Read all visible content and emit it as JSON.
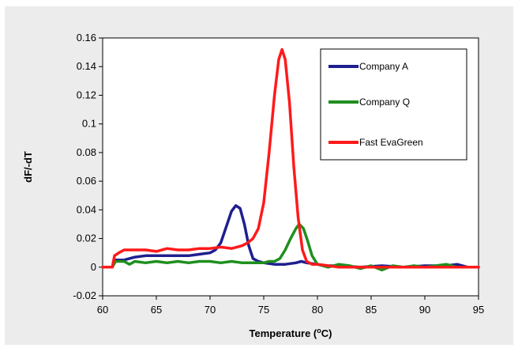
{
  "chart_data": {
    "type": "line",
    "xlabel": "Temperature (oC)",
    "xlabel_main": "Temperature (",
    "xlabel_sup": "o",
    "xlabel_end": "C)",
    "ylabel": "dF/-dT",
    "xlim": [
      60,
      95
    ],
    "ylim": [
      -0.02,
      0.16
    ],
    "x_ticks": [
      60,
      65,
      70,
      75,
      80,
      85,
      90,
      95
    ],
    "y_ticks": [
      -0.02,
      0,
      0.02,
      0.04,
      0.06,
      0.08,
      0.1,
      0.12,
      0.14,
      0.16
    ],
    "x_tick_labels": [
      "60",
      "65",
      "70",
      "75",
      "80",
      "85",
      "90",
      "95"
    ],
    "y_tick_labels": [
      "-0.02",
      "0",
      "0.02",
      "0.04",
      "0.06",
      "0.08",
      "0.1",
      "0.12",
      "0.14",
      "0.16"
    ],
    "grid": false,
    "legend_position": "top-right",
    "series": [
      {
        "name": "Company A",
        "color": "#1f1f8f",
        "points": [
          [
            60,
            0
          ],
          [
            60.9,
            0
          ],
          [
            61.2,
            0.005
          ],
          [
            62,
            0.005
          ],
          [
            63,
            0.007
          ],
          [
            64,
            0.008
          ],
          [
            65,
            0.008
          ],
          [
            66,
            0.008
          ],
          [
            67,
            0.008
          ],
          [
            68,
            0.008
          ],
          [
            69,
            0.009
          ],
          [
            70,
            0.01
          ],
          [
            70.5,
            0.012
          ],
          [
            71,
            0.017
          ],
          [
            71.5,
            0.028
          ],
          [
            72,
            0.039
          ],
          [
            72.4,
            0.043
          ],
          [
            72.8,
            0.041
          ],
          [
            73.2,
            0.03
          ],
          [
            73.6,
            0.015
          ],
          [
            74,
            0.006
          ],
          [
            74.5,
            0.004
          ],
          [
            75,
            0.003
          ],
          [
            76,
            0.002
          ],
          [
            77,
            0.002
          ],
          [
            78,
            0.003
          ],
          [
            78.5,
            0.004
          ],
          [
            79,
            0.003
          ],
          [
            80,
            0.002
          ],
          [
            81,
            0.001
          ],
          [
            82,
            0.001
          ],
          [
            84,
            0
          ],
          [
            86,
            0.001
          ],
          [
            88,
            0
          ],
          [
            90,
            0.001
          ],
          [
            92,
            0.001
          ],
          [
            93,
            0.002
          ],
          [
            94,
            0
          ],
          [
            95,
            0
          ]
        ]
      },
      {
        "name": "Company Q",
        "color": "#1e8f1e",
        "points": [
          [
            60,
            0
          ],
          [
            60.9,
            0
          ],
          [
            61.2,
            0.004
          ],
          [
            62,
            0.004
          ],
          [
            62.5,
            0.002
          ],
          [
            63,
            0.004
          ],
          [
            64,
            0.003
          ],
          [
            65,
            0.004
          ],
          [
            66,
            0.003
          ],
          [
            67,
            0.004
          ],
          [
            68,
            0.003
          ],
          [
            69,
            0.004
          ],
          [
            70,
            0.004
          ],
          [
            71,
            0.003
          ],
          [
            72,
            0.004
          ],
          [
            73,
            0.003
          ],
          [
            74,
            0.003
          ],
          [
            75,
            0.003
          ],
          [
            75.5,
            0.004
          ],
          [
            76,
            0.004
          ],
          [
            76.5,
            0.006
          ],
          [
            77,
            0.012
          ],
          [
            77.5,
            0.02
          ],
          [
            78,
            0.027
          ],
          [
            78.3,
            0.03
          ],
          [
            78.7,
            0.027
          ],
          [
            79.1,
            0.018
          ],
          [
            79.5,
            0.008
          ],
          [
            80,
            0.002
          ],
          [
            81,
            0
          ],
          [
            82,
            0.002
          ],
          [
            83,
            0.001
          ],
          [
            84,
            -0.001
          ],
          [
            85,
            0.001
          ],
          [
            86,
            -0.002
          ],
          [
            87,
            0.001
          ],
          [
            88,
            0
          ],
          [
            89,
            0.001
          ],
          [
            90,
            0
          ],
          [
            91,
            0.001
          ],
          [
            92,
            0.002
          ],
          [
            93,
            0
          ],
          [
            94,
            0
          ],
          [
            95,
            0
          ]
        ]
      },
      {
        "name": "Fast EvaGreen",
        "color": "#ff1a1a",
        "points": [
          [
            60,
            0
          ],
          [
            60.9,
            0
          ],
          [
            61.1,
            0.008
          ],
          [
            61.5,
            0.01
          ],
          [
            62,
            0.012
          ],
          [
            63,
            0.012
          ],
          [
            64,
            0.012
          ],
          [
            65,
            0.011
          ],
          [
            66,
            0.013
          ],
          [
            67,
            0.012
          ],
          [
            68,
            0.012
          ],
          [
            69,
            0.013
          ],
          [
            70,
            0.013
          ],
          [
            71,
            0.014
          ],
          [
            72,
            0.013
          ],
          [
            72.5,
            0.014
          ],
          [
            73,
            0.015
          ],
          [
            73.5,
            0.017
          ],
          [
            74,
            0.02
          ],
          [
            74.5,
            0.027
          ],
          [
            75,
            0.045
          ],
          [
            75.5,
            0.08
          ],
          [
            76,
            0.12
          ],
          [
            76.4,
            0.145
          ],
          [
            76.7,
            0.152
          ],
          [
            77,
            0.145
          ],
          [
            77.4,
            0.115
          ],
          [
            77.8,
            0.07
          ],
          [
            78.2,
            0.035
          ],
          [
            78.6,
            0.012
          ],
          [
            79,
            0.004
          ],
          [
            79.5,
            0.002
          ],
          [
            80,
            0.002
          ],
          [
            81,
            0.001
          ],
          [
            82,
            0
          ],
          [
            84,
            0
          ],
          [
            86,
            0
          ],
          [
            88,
            0
          ],
          [
            90,
            0
          ],
          [
            92,
            0
          ],
          [
            95,
            0
          ]
        ]
      }
    ]
  }
}
